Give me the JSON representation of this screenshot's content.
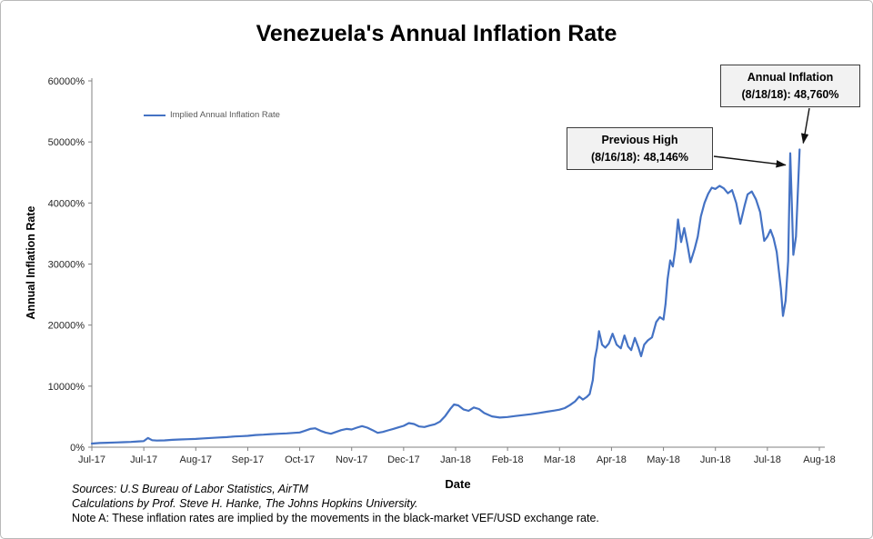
{
  "chart": {
    "title": "Venezuela's Annual Inflation Rate",
    "y_axis_label": "Annual Inflation Rate",
    "x_axis_label": "Date",
    "legend": "Implied Annual Inflation Rate",
    "line_color": "#4472C4"
  },
  "annotations": [
    {
      "name": "previous-high",
      "line1": "Previous High",
      "line2": "(8/16/18): 48,146%",
      "target": {
        "t": 13.44,
        "v": 48146
      }
    },
    {
      "name": "annual-inflation",
      "line1": "Annual Inflation",
      "line2": "(8/18/18): 48,760%",
      "target": {
        "t": 13.62,
        "v": 48760
      }
    }
  ],
  "footnotes": [
    "Sources: U.S Bureau of Labor Statistics, AirTM",
    "Calculations by Prof. Steve H. Hanke, The Johns Hopkins University.",
    "Note A: These inflation rates are implied by the movements in the black-market VEF/USD exchange rate."
  ],
  "chart_data": {
    "type": "line",
    "title": "Venezuela's Annual Inflation Rate",
    "xlabel": "Date",
    "ylabel": "Annual Inflation Rate",
    "x_units": "x-axis tick index (0 = first Jul-17 tick, 14 = Aug-18 tick)",
    "x_tick_labels": [
      "Jul-17",
      "Jul-17",
      "Aug-17",
      "Sep-17",
      "Oct-17",
      "Nov-17",
      "Dec-17",
      "Jan-18",
      "Feb-18",
      "Mar-18",
      "Apr-18",
      "May-18",
      "Jun-18",
      "Jul-18",
      "Aug-18"
    ],
    "y_tick_labels": [
      "0%",
      "10000%",
      "20000%",
      "30000%",
      "40000%",
      "50000%",
      "60000%"
    ],
    "ylim": [
      0,
      60000
    ],
    "grid": false,
    "legend_position": "top-left-inside",
    "key_points": [
      {
        "label": "Previous High",
        "date": "8/16/18",
        "value_pct": 48146
      },
      {
        "label": "Annual Inflation",
        "date": "8/18/18",
        "value_pct": 48760
      }
    ],
    "series": [
      {
        "name": "Implied Annual Inflation Rate",
        "color": "#4472C4",
        "points": [
          [
            0,
            600
          ],
          [
            0.15,
            680
          ],
          [
            0.3,
            730
          ],
          [
            0.45,
            780
          ],
          [
            0.6,
            820
          ],
          [
            0.75,
            870
          ],
          [
            0.9,
            950
          ],
          [
            1.0,
            1000
          ],
          [
            1.08,
            1500
          ],
          [
            1.16,
            1150
          ],
          [
            1.25,
            1080
          ],
          [
            1.4,
            1120
          ],
          [
            1.55,
            1200
          ],
          [
            1.7,
            1260
          ],
          [
            1.85,
            1310
          ],
          [
            2.0,
            1360
          ],
          [
            2.15,
            1450
          ],
          [
            2.3,
            1520
          ],
          [
            2.45,
            1600
          ],
          [
            2.6,
            1660
          ],
          [
            2.75,
            1750
          ],
          [
            2.9,
            1810
          ],
          [
            3.0,
            1860
          ],
          [
            3.15,
            2000
          ],
          [
            3.3,
            2060
          ],
          [
            3.45,
            2150
          ],
          [
            3.6,
            2210
          ],
          [
            3.75,
            2260
          ],
          [
            3.9,
            2350
          ],
          [
            4.0,
            2410
          ],
          [
            4.1,
            2700
          ],
          [
            4.2,
            3000
          ],
          [
            4.3,
            3100
          ],
          [
            4.4,
            2700
          ],
          [
            4.5,
            2400
          ],
          [
            4.6,
            2200
          ],
          [
            4.7,
            2500
          ],
          [
            4.8,
            2800
          ],
          [
            4.9,
            3000
          ],
          [
            5.0,
            2900
          ],
          [
            5.1,
            3200
          ],
          [
            5.2,
            3450
          ],
          [
            5.3,
            3200
          ],
          [
            5.4,
            2800
          ],
          [
            5.5,
            2350
          ],
          [
            5.6,
            2500
          ],
          [
            5.7,
            2750
          ],
          [
            5.8,
            3000
          ],
          [
            5.9,
            3250
          ],
          [
            6.0,
            3500
          ],
          [
            6.1,
            3950
          ],
          [
            6.2,
            3800
          ],
          [
            6.3,
            3400
          ],
          [
            6.4,
            3300
          ],
          [
            6.5,
            3550
          ],
          [
            6.6,
            3750
          ],
          [
            6.7,
            4200
          ],
          [
            6.8,
            5100
          ],
          [
            6.9,
            6300
          ],
          [
            6.97,
            7000
          ],
          [
            7.05,
            6850
          ],
          [
            7.15,
            6200
          ],
          [
            7.25,
            5950
          ],
          [
            7.35,
            6500
          ],
          [
            7.45,
            6250
          ],
          [
            7.55,
            5600
          ],
          [
            7.7,
            5050
          ],
          [
            7.85,
            4850
          ],
          [
            8.0,
            4950
          ],
          [
            8.15,
            5100
          ],
          [
            8.3,
            5250
          ],
          [
            8.45,
            5400
          ],
          [
            8.6,
            5600
          ],
          [
            8.75,
            5800
          ],
          [
            8.9,
            6000
          ],
          [
            9.0,
            6150
          ],
          [
            9.1,
            6400
          ],
          [
            9.2,
            6900
          ],
          [
            9.3,
            7500
          ],
          [
            9.38,
            8300
          ],
          [
            9.45,
            7800
          ],
          [
            9.52,
            8200
          ],
          [
            9.58,
            8700
          ],
          [
            9.64,
            11000
          ],
          [
            9.68,
            14500
          ],
          [
            9.72,
            16200
          ],
          [
            9.76,
            19000
          ],
          [
            9.82,
            16800
          ],
          [
            9.88,
            16300
          ],
          [
            9.95,
            17000
          ],
          [
            10.02,
            18600
          ],
          [
            10.1,
            16800
          ],
          [
            10.18,
            16200
          ],
          [
            10.25,
            18300
          ],
          [
            10.32,
            16500
          ],
          [
            10.38,
            15900
          ],
          [
            10.45,
            17900
          ],
          [
            10.52,
            16300
          ],
          [
            10.57,
            14900
          ],
          [
            10.63,
            16800
          ],
          [
            10.7,
            17500
          ],
          [
            10.78,
            18000
          ],
          [
            10.86,
            20500
          ],
          [
            10.93,
            21300
          ],
          [
            11.0,
            20900
          ],
          [
            11.04,
            23500
          ],
          [
            11.08,
            27500
          ],
          [
            11.13,
            30600
          ],
          [
            11.18,
            29600
          ],
          [
            11.23,
            32500
          ],
          [
            11.28,
            37300
          ],
          [
            11.34,
            33600
          ],
          [
            11.4,
            35900
          ],
          [
            11.46,
            33200
          ],
          [
            11.52,
            30300
          ],
          [
            11.6,
            32500
          ],
          [
            11.66,
            34500
          ],
          [
            11.72,
            37800
          ],
          [
            11.79,
            40000
          ],
          [
            11.86,
            41500
          ],
          [
            11.93,
            42500
          ],
          [
            12.0,
            42300
          ],
          [
            12.08,
            42800
          ],
          [
            12.16,
            42400
          ],
          [
            12.24,
            41600
          ],
          [
            12.32,
            42100
          ],
          [
            12.4,
            40000
          ],
          [
            12.48,
            36600
          ],
          [
            12.56,
            39500
          ],
          [
            12.62,
            41400
          ],
          [
            12.7,
            41900
          ],
          [
            12.78,
            40600
          ],
          [
            12.86,
            38500
          ],
          [
            12.94,
            33800
          ],
          [
            13.0,
            34500
          ],
          [
            13.06,
            35600
          ],
          [
            13.12,
            34200
          ],
          [
            13.18,
            32000
          ],
          [
            13.26,
            26000
          ],
          [
            13.3,
            21500
          ],
          [
            13.35,
            24000
          ],
          [
            13.4,
            30500
          ],
          [
            13.44,
            48146
          ],
          [
            13.47,
            40000
          ],
          [
            13.5,
            31500
          ],
          [
            13.55,
            34500
          ],
          [
            13.62,
            48760
          ]
        ]
      }
    ]
  }
}
